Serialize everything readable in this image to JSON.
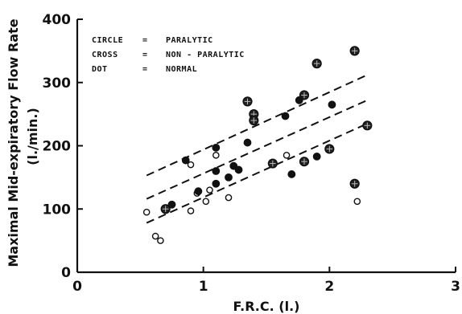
{
  "chart_data": {
    "type": "scatter",
    "xlabel": "F.R.C. (l.)",
    "ylabel_lines": [
      "Maximal  Mid-expiratory  Flow Rate",
      "(l./min.)"
    ],
    "xlim": [
      0,
      3
    ],
    "ylim": [
      0,
      400
    ],
    "x_ticks": [
      0,
      1,
      2,
      3
    ],
    "y_ticks": [
      0,
      100,
      200,
      300,
      400
    ],
    "grid": false,
    "legend_position": "top-left",
    "legend": [
      {
        "key": "CIRCLE",
        "sep": "=",
        "label": "PARALYTIC"
      },
      {
        "key": "CROSS",
        "sep": "=",
        "label": "NON - PARALYTIC"
      },
      {
        "key": "DOT",
        "sep": "=",
        "label": "NORMAL"
      }
    ],
    "series": [
      {
        "marker": "open-circle",
        "points": [
          [
            0.55,
            95
          ],
          [
            0.62,
            57
          ],
          [
            0.66,
            50
          ],
          [
            0.9,
            97
          ],
          [
            0.9,
            170
          ],
          [
            0.95,
            125
          ],
          [
            1.02,
            112
          ],
          [
            1.05,
            130
          ],
          [
            1.1,
            185
          ],
          [
            1.2,
            118
          ],
          [
            1.66,
            185
          ],
          [
            2.22,
            112
          ]
        ]
      },
      {
        "marker": "crossed-circle",
        "points": [
          [
            0.7,
            100
          ],
          [
            1.35,
            270
          ],
          [
            1.4,
            250
          ],
          [
            1.4,
            240
          ],
          [
            1.55,
            172
          ],
          [
            1.8,
            175
          ],
          [
            1.8,
            280
          ],
          [
            1.9,
            330
          ],
          [
            2.0,
            195
          ],
          [
            2.2,
            140
          ],
          [
            2.2,
            350
          ],
          [
            2.3,
            232
          ]
        ]
      },
      {
        "marker": "filled-dot",
        "points": [
          [
            0.75,
            107
          ],
          [
            0.86,
            177
          ],
          [
            0.96,
            128
          ],
          [
            1.1,
            160
          ],
          [
            1.1,
            197
          ],
          [
            1.1,
            140
          ],
          [
            1.2,
            150
          ],
          [
            1.24,
            168
          ],
          [
            1.28,
            162
          ],
          [
            1.35,
            205
          ],
          [
            1.65,
            247
          ],
          [
            1.7,
            155
          ],
          [
            1.76,
            272
          ],
          [
            1.9,
            183
          ],
          [
            2.02,
            265
          ]
        ]
      }
    ],
    "regression_lines": [
      {
        "from": [
          0.55,
          153
        ],
        "to": [
          2.3,
          312
        ]
      },
      {
        "from": [
          0.55,
          116
        ],
        "to": [
          2.3,
          272
        ]
      },
      {
        "from": [
          0.55,
          78
        ],
        "to": [
          2.3,
          235
        ]
      }
    ]
  }
}
